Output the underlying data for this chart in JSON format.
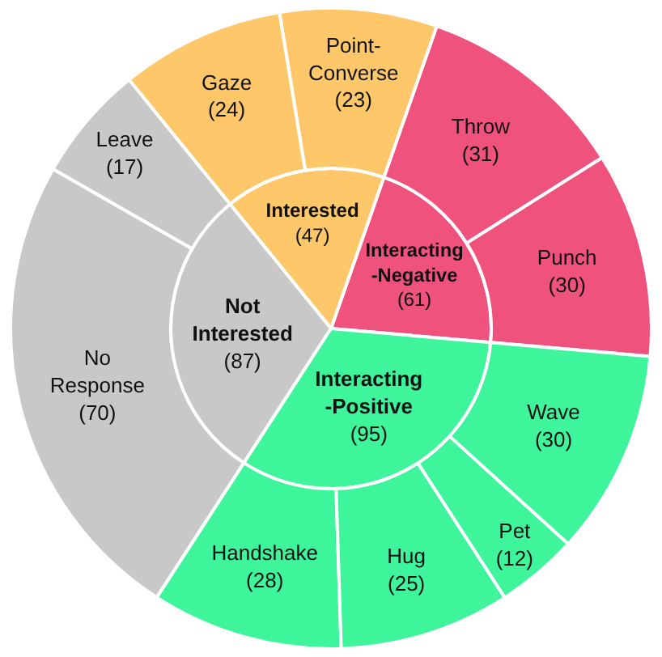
{
  "chart_data": {
    "type": "other",
    "categories": [
      "Wave",
      "Pet",
      "Hug",
      "Handshake",
      "No Response",
      "Leave",
      "Gaze",
      "Point-Converse",
      "Throw",
      "Punch"
    ],
    "series": [
      {
        "name": "Interacting -Positive",
        "color": "#3ef59c",
        "values": [
          30,
          12,
          25,
          28,
          null,
          null,
          null,
          null,
          null,
          null
        ],
        "value_labels": [
          "(30)",
          "(12)",
          "(25)",
          "(28)",
          null,
          null,
          null,
          null,
          null,
          null
        ]
      },
      {
        "name": "Not Interested",
        "color": "#c8c8c8",
        "values": [
          null,
          null,
          null,
          null,
          70,
          17,
          null,
          null,
          null,
          null
        ],
        "value_labels": [
          null,
          null,
          null,
          null,
          "(70)",
          "(17)",
          null,
          null,
          null,
          null
        ]
      },
      {
        "name": "Interested",
        "color": "#fec86a",
        "values": [
          null,
          null,
          null,
          null,
          null,
          null,
          24,
          23,
          null,
          null
        ],
        "value_labels": [
          null,
          null,
          null,
          null,
          null,
          null,
          "(24)",
          "(23)",
          null,
          null
        ]
      },
      {
        "name": "Interacting -Negative",
        "color": "#f0527e",
        "values": [
          null,
          null,
          null,
          null,
          null,
          null,
          null,
          null,
          31,
          30
        ],
        "value_labels": [
          null,
          null,
          null,
          null,
          null,
          null,
          null,
          null,
          "(31)",
          "(30)"
        ]
      }
    ],
    "annotations": [
      "(95)",
      "(87)",
      "(47)",
      "(61)"
    ]
  }
}
